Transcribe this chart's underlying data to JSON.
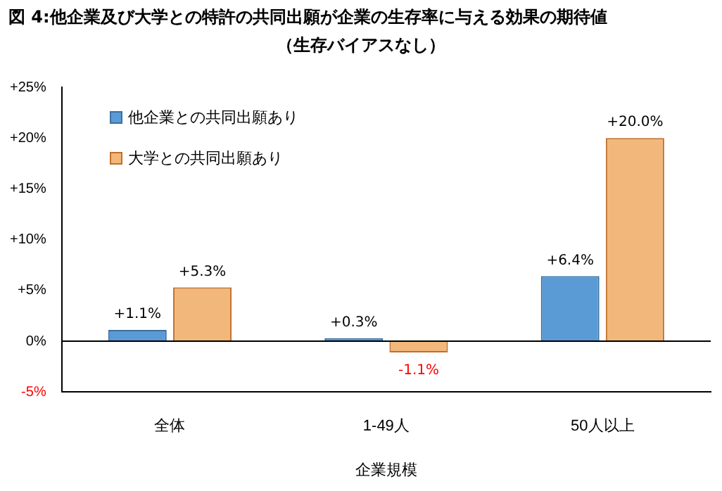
{
  "chart_data": {
    "type": "bar",
    "title": "図 4:他企業及び大学との特許の共同出願が企業の生存率に与える効果の期待値",
    "subtitle": "（生存バイアスなし）",
    "xlabel": "企業規模",
    "categories": [
      "全体",
      "1-49人",
      "50人以上"
    ],
    "series": [
      {
        "name": "他企業との共同出願あり",
        "color": "#5b9bd5",
        "values": [
          1.1,
          0.3,
          6.4
        ],
        "value_labels": [
          "+1.1%",
          "+0.3%",
          "+6.4%"
        ]
      },
      {
        "name": "大学との共同出願あり",
        "color": "#f2b77a",
        "values": [
          5.3,
          -1.1,
          20.0
        ],
        "value_labels": [
          "+5.3%",
          "-1.1%",
          "+20.0%"
        ]
      }
    ],
    "ylim": [
      -5,
      25
    ],
    "yticks": [
      {
        "value": -5,
        "label": "-5%"
      },
      {
        "value": 0,
        "label": "0%"
      },
      {
        "value": 5,
        "label": "+5%"
      },
      {
        "value": 10,
        "label": "+10%"
      },
      {
        "value": 15,
        "label": "+15%"
      },
      {
        "value": 20,
        "label": "+20%"
      },
      {
        "value": 25,
        "label": "+25%"
      }
    ],
    "ref_lines": [
      {
        "axis": "y",
        "value": 0,
        "color": "#000000"
      }
    ],
    "grid": false,
    "legend": "top left"
  }
}
